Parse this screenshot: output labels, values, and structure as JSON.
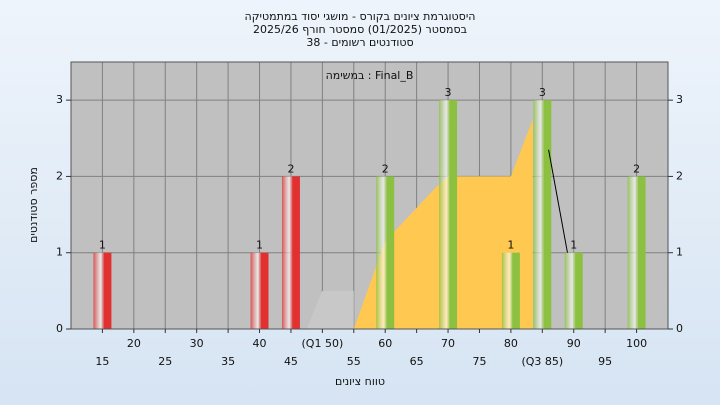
{
  "chart_data": {
    "type": "bar",
    "title_lines": [
      "היסטוגרמת ציונים בקורס - מושגי יסוד במתמטיקה",
      "בסמסטר  (01/2025)  סמסטר חורף 2025/26",
      "סטודנטים רשומים - 38"
    ],
    "annotation": "במשימה : Final_B",
    "x_label": "טווח ציונים",
    "y_label": "מספר סטודנטים",
    "x": [
      15,
      40,
      45,
      60,
      70,
      80,
      85,
      90,
      100
    ],
    "values": [
      1,
      1,
      2,
      2,
      3,
      1,
      3,
      1,
      2
    ],
    "colors": [
      "#e03030",
      "#e03030",
      "#e03030",
      "#8cc040",
      "#8cc040",
      "#8cc040",
      "#8cc040",
      "#8cc040",
      "#8cc040"
    ],
    "areas": [
      {
        "color": "#c8c8c8",
        "x": [
          47.5,
          50,
          55,
          55
        ],
        "values": [
          0,
          0.5,
          0.5,
          0
        ]
      },
      {
        "color": "#ffc850",
        "x": [
          55,
          60,
          68,
          70,
          80,
          83.5,
          83.5
        ],
        "values": [
          0,
          1.15,
          1.85,
          2,
          2,
          2.75,
          0
        ]
      }
    ],
    "lines": [
      {
        "color": "#000000",
        "x": [
          86,
          89
        ],
        "values": [
          2.35,
          1
        ]
      }
    ],
    "xlim": [
      10,
      105
    ],
    "ylim": [
      0,
      3.5
    ],
    "xticks": [
      15,
      20,
      25,
      30,
      35,
      40,
      45,
      {
        "value": 50,
        "label": "(Q1 50)"
      },
      55,
      60,
      65,
      70,
      75,
      80,
      {
        "value": 85,
        "label": "(Q3 85)"
      },
      90,
      95,
      100
    ],
    "yticks": [
      0,
      1,
      2,
      3
    ],
    "grid": true
  }
}
